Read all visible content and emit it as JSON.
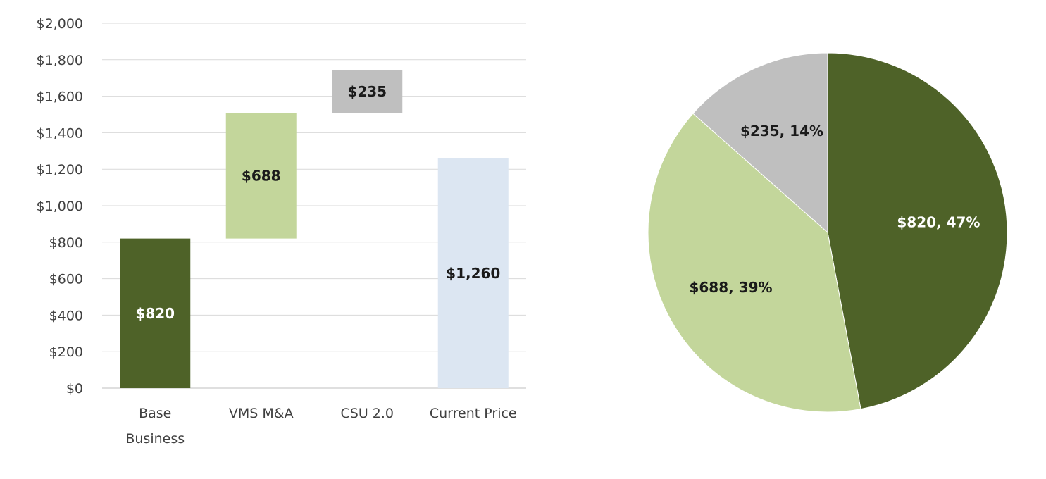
{
  "chart_data": [
    {
      "type": "bar",
      "subtype": "waterfall",
      "title": "",
      "xlabel": "",
      "ylabel": "",
      "ylim": [
        0,
        2000
      ],
      "yticks": [
        0,
        200,
        400,
        600,
        800,
        1000,
        1200,
        1400,
        1600,
        1800,
        2000
      ],
      "ytick_labels": [
        "$0",
        "$200",
        "$400",
        "$600",
        "$800",
        "$1,000",
        "$1,200",
        "$1,400",
        "$1,600",
        "$1,800",
        "$2,000"
      ],
      "grid": true,
      "legend": "none",
      "categories": [
        {
          "line1": "Base",
          "line2": "Business"
        },
        {
          "line1": "VMS M&A",
          "line2": ""
        },
        {
          "line1": "CSU 2.0",
          "line2": ""
        },
        {
          "line1": "Current Price",
          "line2": ""
        }
      ],
      "bars": [
        {
          "bottom": 0,
          "top": 820,
          "value": 820,
          "label": "$820",
          "color": "#4e6228",
          "label_color": "#ffffff"
        },
        {
          "bottom": 820,
          "top": 1508,
          "value": 688,
          "label": "$688",
          "color": "#c3d69b",
          "label_color": "#1a1a1a"
        },
        {
          "bottom": 1508,
          "top": 1743,
          "value": 235,
          "label": "$235",
          "color": "#bfbfbf",
          "label_color": "#1a1a1a"
        },
        {
          "bottom": 0,
          "top": 1260,
          "value": 1260,
          "label": "$1,260",
          "color": "#dce6f2",
          "label_color": "#1a1a1a"
        }
      ]
    },
    {
      "type": "pie",
      "title": "",
      "legend": "none",
      "slices": [
        {
          "value": 820,
          "percent": 47,
          "label": "$820, 47%",
          "color": "#4e6228",
          "label_color": "#ffffff"
        },
        {
          "value": 688,
          "percent": 39,
          "label": "$688, 39%",
          "color": "#c3d69b",
          "label_color": "#1a1a1a"
        },
        {
          "value": 235,
          "percent": 14,
          "label": "$235, 14%",
          "color": "#bfbfbf",
          "label_color": "#1a1a1a"
        }
      ]
    }
  ]
}
